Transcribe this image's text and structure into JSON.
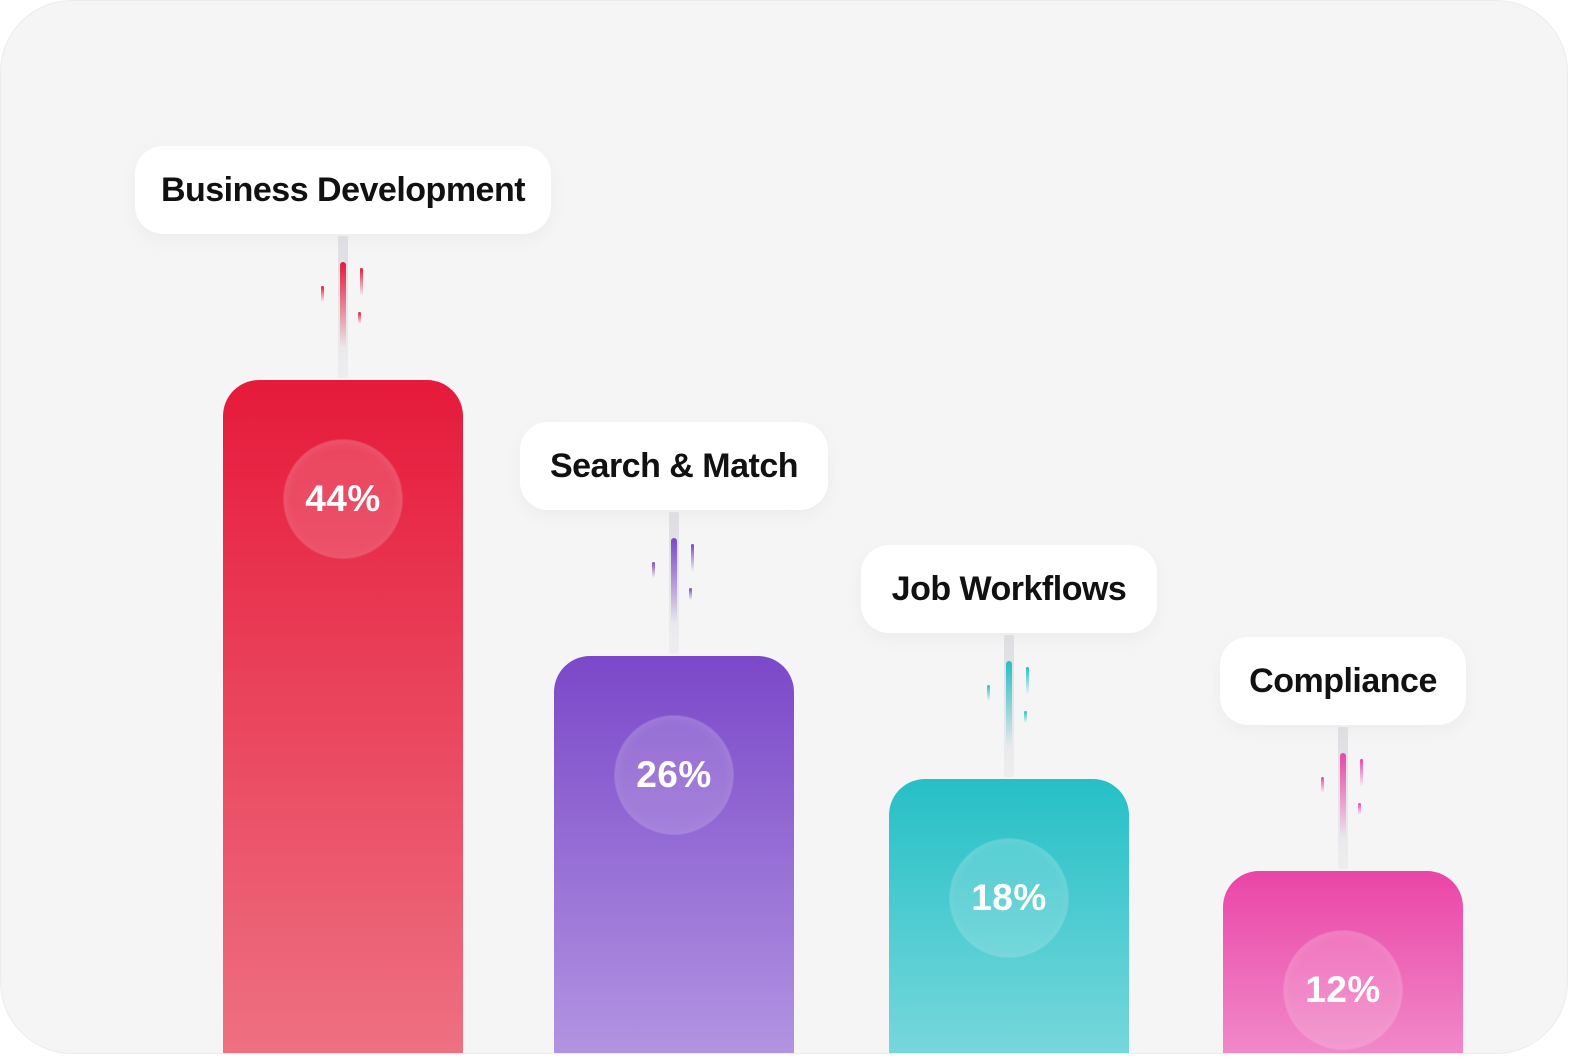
{
  "chart_data": {
    "type": "bar",
    "categories": [
      "Business Development",
      "Search & Match",
      "Job Workflows",
      "Compliance"
    ],
    "values": [
      44,
      26,
      18,
      12
    ],
    "value_labels": [
      "44%",
      "26%",
      "18%",
      "12%"
    ],
    "colors": [
      {
        "top": "#e61a3a",
        "bottom": "#ee7283"
      },
      {
        "top": "#7b48c9",
        "bottom": "#b396e2"
      },
      {
        "top": "#25c0c6",
        "bottom": "#7ad8dd"
      },
      {
        "top": "#ea45a7",
        "bottom": "#f18dca"
      }
    ],
    "streak_colors": [
      "#e61a3a",
      "#7b48c9",
      "#25c0c6",
      "#ea45a7"
    ],
    "title": "",
    "xlabel": "",
    "ylabel": "",
    "ylim": [
      0,
      44
    ],
    "grid": false,
    "legend": "none"
  }
}
